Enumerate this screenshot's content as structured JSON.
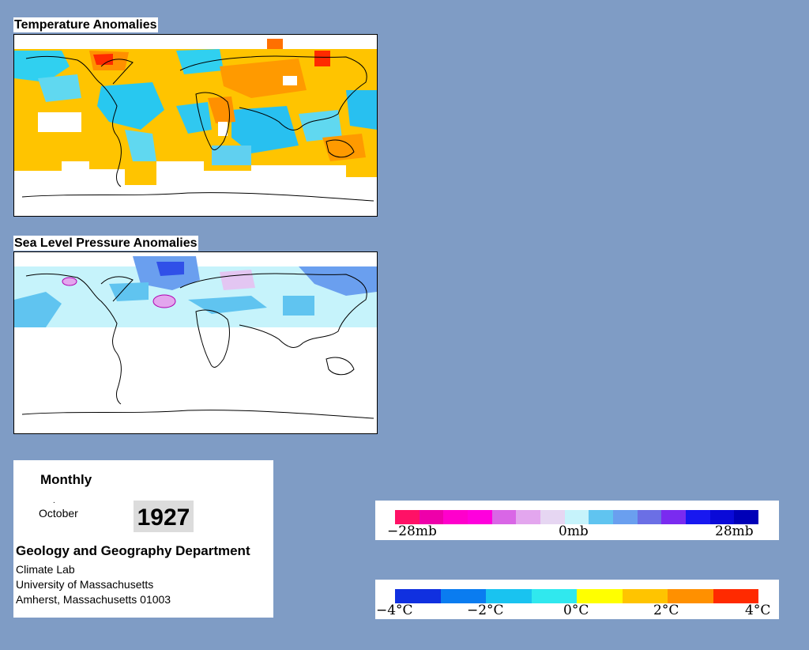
{
  "maps": {
    "temperature_title": "Temperature Anomalies",
    "pressure_title": "Sea Level Pressure Anomalies"
  },
  "info": {
    "mode": "Monthly",
    "month": "October",
    "year": "1927",
    "department": "Geology and Geography Department",
    "lab": "Climate Lab",
    "university": "University of Massachusetts",
    "address": "Amherst, Massachusetts 01003"
  },
  "pressure_legend": {
    "labels": [
      "−28mb",
      "0mb",
      "28mb"
    ],
    "colors": [
      "#ff1166",
      "#ee00aa",
      "#ff00cc",
      "#ff00dd",
      "#d966e6",
      "#e3a6ee",
      "#e6d6f2",
      "#c6f3fb",
      "#60c4f0",
      "#6a9fef",
      "#6b6fe5",
      "#7a2bf0",
      "#1818f0",
      "#0a0ad8",
      "#0000b8"
    ]
  },
  "temperature_legend": {
    "labels": [
      "−4°C",
      "−2°C",
      "0°C",
      "2°C",
      "4°C"
    ],
    "colors": [
      "#1030e0",
      "#0a7cf0",
      "#19c3f0",
      "#30e8ee",
      "#ffff00",
      "#ffc400",
      "#ff9000",
      "#ff2a00"
    ]
  }
}
